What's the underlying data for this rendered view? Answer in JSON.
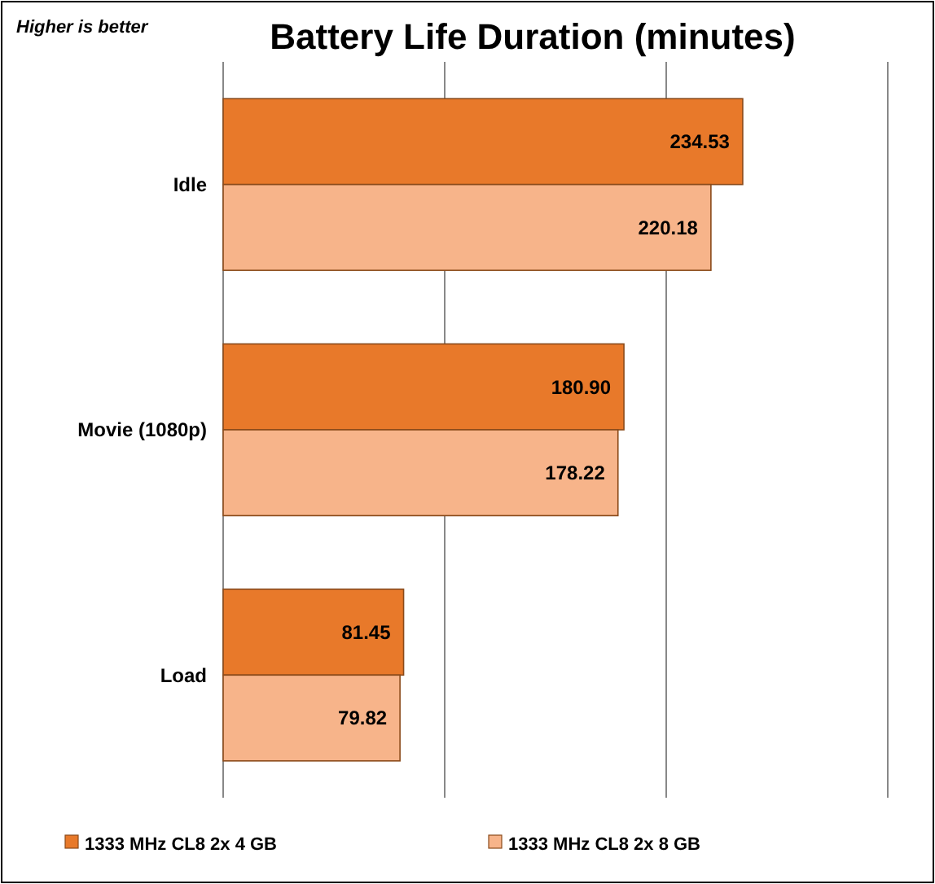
{
  "chart_data": {
    "type": "bar",
    "orientation": "horizontal",
    "title": "Battery Life Duration (minutes)",
    "annotations": [
      "Higher is better"
    ],
    "categories": [
      "Idle",
      "Movie (1080p)",
      "Load"
    ],
    "series": [
      {
        "name": "1333 MHz CL8 2x 4 GB",
        "color": "#e8792a",
        "values": [
          234.53,
          180.9,
          81.45
        ],
        "value_labels": [
          "234.53",
          "180.90",
          "81.45"
        ]
      },
      {
        "name": "1333 MHz CL8 2x 8 GB",
        "color": "#f7b48a",
        "values": [
          220.18,
          178.22,
          79.82
        ],
        "value_labels": [
          "220.18",
          "178.22",
          "79.82"
        ]
      }
    ],
    "xlim": [
      0,
      300
    ],
    "xticks": [
      {
        "value": 0,
        "label": null
      },
      {
        "value": 100,
        "label": null
      },
      {
        "value": 200,
        "label": null
      },
      {
        "value": 300,
        "label": null
      }
    ],
    "grid": "x",
    "legend": "bottom"
  }
}
